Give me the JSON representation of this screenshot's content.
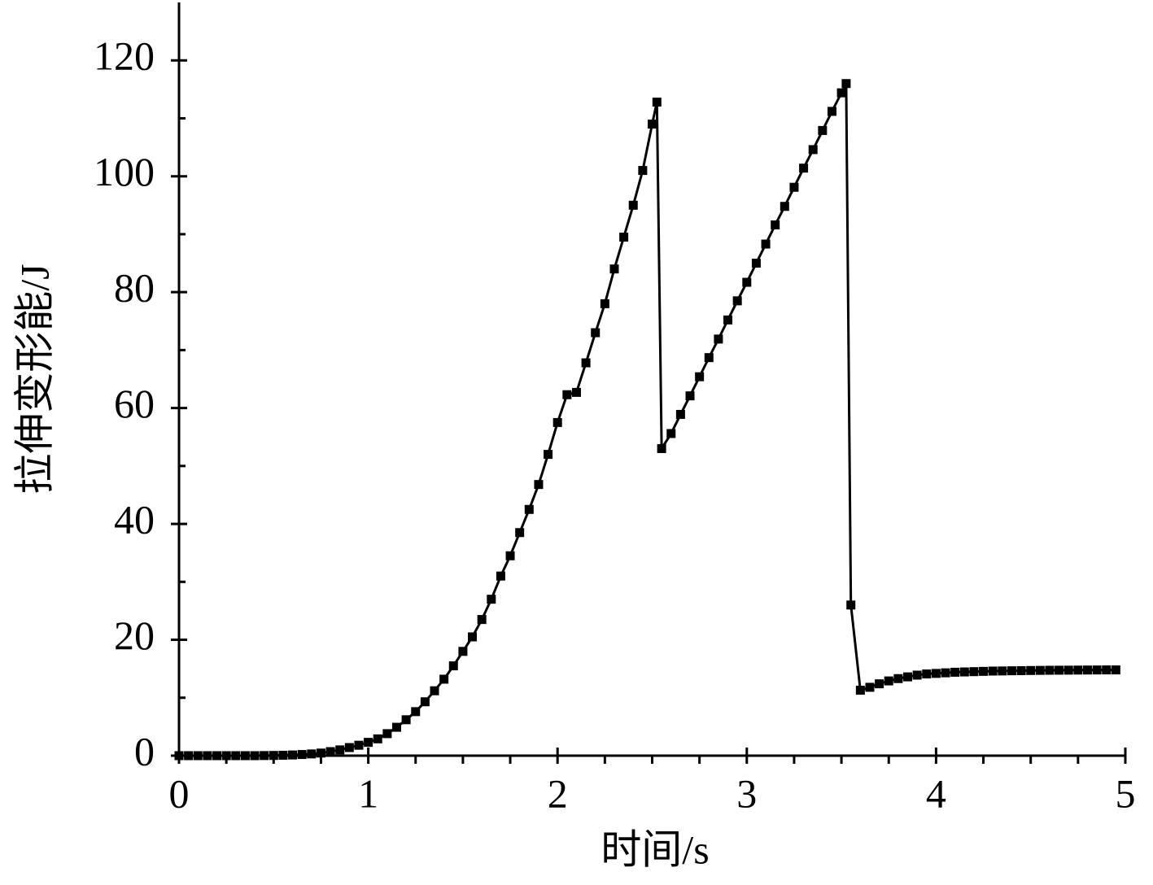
{
  "chart_data": {
    "type": "line",
    "xlabel": "时间/s",
    "ylabel": "拉伸变形能/J",
    "x": [
      0,
      0.05,
      0.1,
      0.15,
      0.2,
      0.25,
      0.3,
      0.35,
      0.4,
      0.45,
      0.5,
      0.55,
      0.6,
      0.65,
      0.7,
      0.75,
      0.8,
      0.85,
      0.9,
      0.95,
      1.0,
      1.05,
      1.1,
      1.15,
      1.2,
      1.25,
      1.3,
      1.35,
      1.4,
      1.45,
      1.5,
      1.55,
      1.6,
      1.65,
      1.7,
      1.75,
      1.8,
      1.85,
      1.9,
      1.95,
      2.0,
      2.05,
      2.1,
      2.15,
      2.2,
      2.25,
      2.3,
      2.35,
      2.4,
      2.45,
      2.5,
      2.525,
      2.55,
      2.6,
      2.65,
      2.7,
      2.75,
      2.8,
      2.85,
      2.9,
      2.95,
      3.0,
      3.05,
      3.1,
      3.15,
      3.2,
      3.25,
      3.3,
      3.35,
      3.4,
      3.45,
      3.5,
      3.525,
      3.55,
      3.6,
      3.65,
      3.7,
      3.75,
      3.8,
      3.85,
      3.9,
      3.95,
      4.0,
      4.05,
      4.1,
      4.15,
      4.2,
      4.25,
      4.3,
      4.35,
      4.4,
      4.45,
      4.5,
      4.55,
      4.6,
      4.65,
      4.7,
      4.75,
      4.8,
      4.85,
      4.9,
      4.95
    ],
    "series": [
      {
        "color": "#000000",
        "values": [
          0,
          0,
          0,
          0,
          0,
          0,
          0,
          0,
          0,
          0.02,
          0.04,
          0.07,
          0.12,
          0.2,
          0.3,
          0.45,
          0.7,
          1.0,
          1.4,
          1.8,
          2.3,
          2.9,
          3.8,
          4.9,
          6.2,
          7.6,
          9.3,
          11.2,
          13.2,
          15.5,
          18,
          20.5,
          23.5,
          27,
          31,
          34.5,
          38.5,
          42.5,
          46.8,
          52,
          57.5,
          62.3,
          62.7,
          67.8,
          73,
          78,
          84,
          89.5,
          95,
          101,
          109,
          112.8,
          53,
          55.6,
          58.9,
          62.1,
          65.4,
          68.7,
          71.9,
          75.2,
          78.5,
          81.7,
          85,
          88.3,
          91.6,
          94.8,
          98.1,
          101.4,
          104.6,
          107.9,
          111.2,
          114.4,
          116,
          26,
          11.3,
          11.8,
          12.4,
          12.9,
          13.3,
          13.6,
          13.9,
          14.1,
          14.2,
          14.3,
          14.4,
          14.45,
          14.5,
          14.55,
          14.6,
          14.62,
          14.65,
          14.67,
          14.7,
          14.72,
          14.74,
          14.75,
          14.76,
          14.77,
          14.78,
          14.79,
          14.8,
          14.8
        ]
      }
    ],
    "xlim": [
      0,
      5
    ],
    "xticks": [
      0,
      1,
      2,
      3,
      4,
      5
    ],
    "xminorticks": [
      0.25,
      0.5,
      0.75,
      1.25,
      1.5,
      1.75,
      2.25,
      2.5,
      2.75,
      3.25,
      3.5,
      3.75,
      4.25,
      4.5,
      4.75
    ],
    "ylim": [
      0,
      130
    ],
    "yticks": [
      0,
      20,
      40,
      60,
      80,
      100,
      120
    ],
    "yminorticks": [
      10,
      30,
      50,
      70,
      90,
      110
    ],
    "grid": false
  }
}
